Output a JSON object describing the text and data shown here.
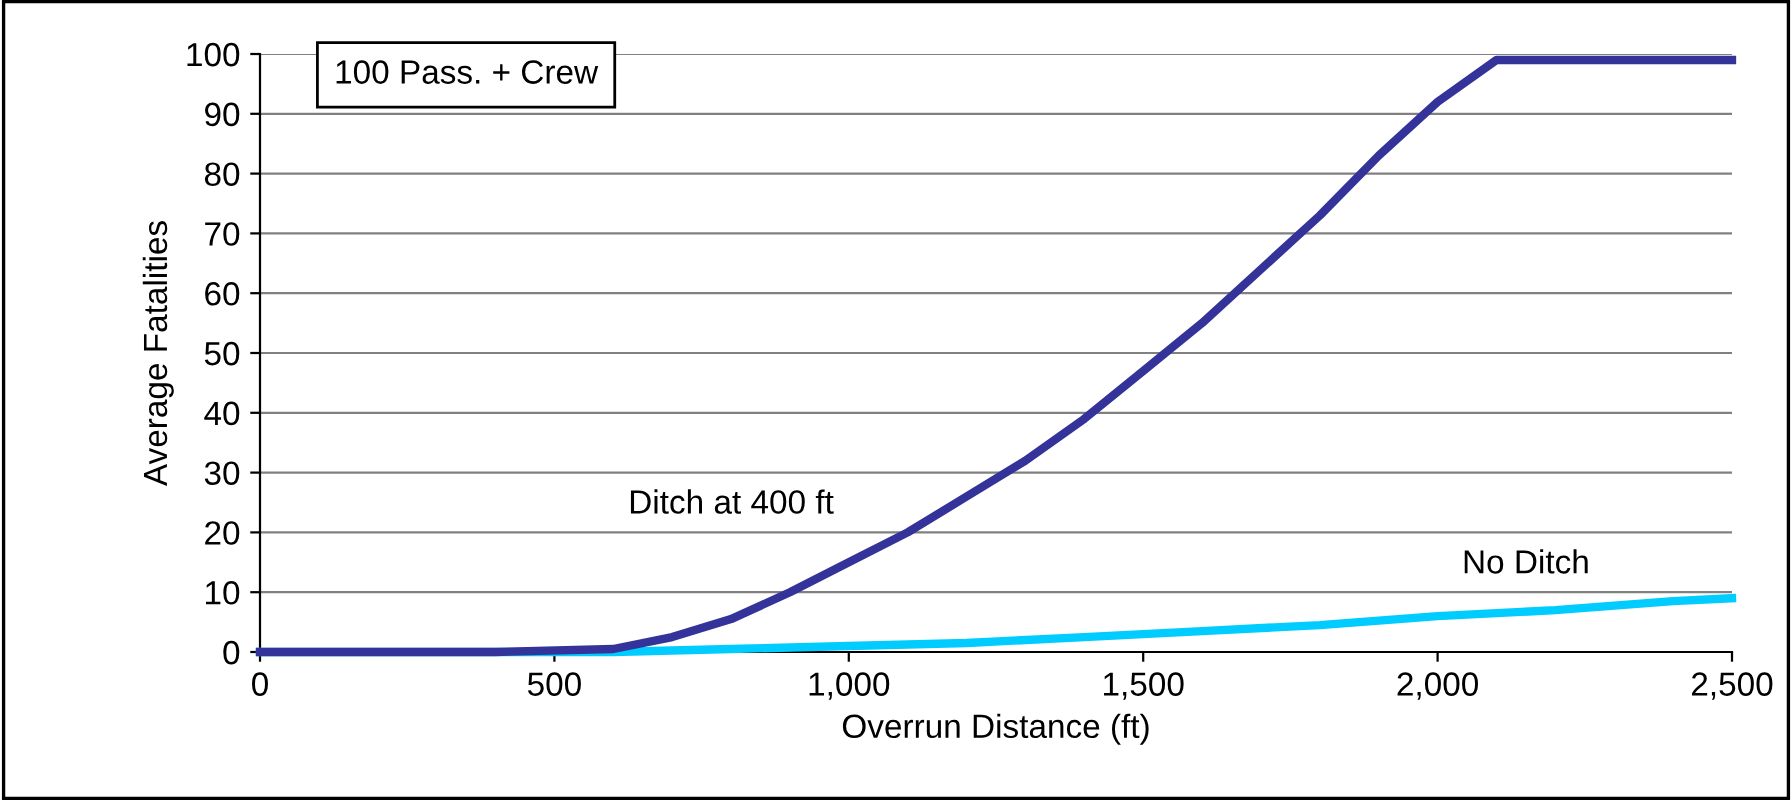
{
  "chart_data": {
    "type": "line",
    "xlabel": "Overrun Distance (ft)",
    "ylabel": "Average Fatalities",
    "annotations": [
      "100 Pass. + Crew"
    ],
    "series": [
      {
        "name": "Ditch at 400 ft",
        "color": "#333399",
        "x": [
          0,
          200,
          400,
          600,
          700,
          800,
          900,
          1000,
          1100,
          1200,
          1300,
          1400,
          1500,
          1600,
          1700,
          1800,
          1900,
          2000,
          2100,
          2200,
          2300,
          2400,
          2500
        ],
        "values": [
          0,
          0,
          0,
          0.5,
          2.5,
          5.5,
          10,
          15,
          20,
          26,
          32,
          39,
          47,
          55,
          64,
          73,
          83,
          92,
          99,
          99,
          99,
          99,
          99
        ]
      },
      {
        "name": "No Ditch",
        "color": "#00ccff",
        "x": [
          0,
          200,
          400,
          600,
          800,
          1000,
          1200,
          1400,
          1600,
          1800,
          2000,
          2200,
          2400,
          2500
        ],
        "values": [
          0,
          0,
          0,
          0,
          0.5,
          1,
          1.5,
          2.5,
          3.5,
          4.5,
          6,
          7,
          8.5,
          9
        ]
      }
    ],
    "xlim": [
      0,
      2500
    ],
    "xticks": [
      0,
      {
        "value": 500,
        "label": "500"
      },
      {
        "value": 1000,
        "label": "1,000"
      },
      {
        "value": 1500,
        "label": "1,500"
      },
      {
        "value": 2000,
        "label": "2,000"
      },
      {
        "value": 2500,
        "label": "2,500"
      }
    ],
    "ylim": [
      0,
      100
    ],
    "yticks": [
      0,
      10,
      20,
      30,
      40,
      50,
      60,
      70,
      80,
      90,
      100
    ],
    "grid": "y",
    "legend": false,
    "marker": "none",
    "line_style": "solid"
  }
}
